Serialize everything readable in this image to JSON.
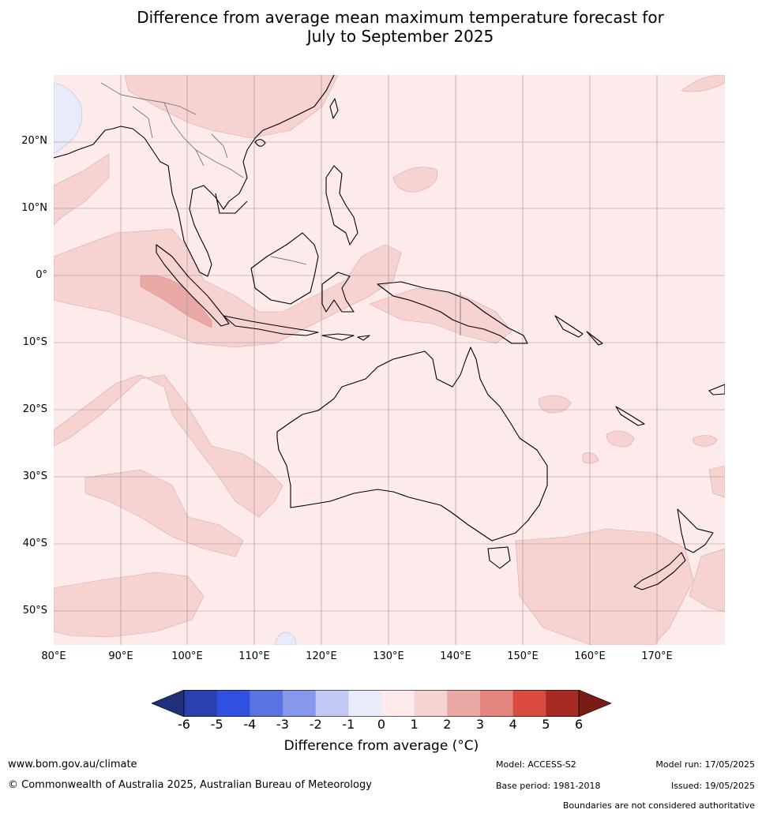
{
  "title_line1": "Difference from average mean maximum temperature forecast for",
  "title_line2": "July to September 2025",
  "lat_labels": [
    "20°N",
    "10°N",
    "0°",
    "10°S",
    "20°S",
    "30°S",
    "40°S",
    "50°S"
  ],
  "lon_labels": [
    "80°E",
    "90°E",
    "100°E",
    "110°E",
    "120°E",
    "130°E",
    "140°E",
    "150°E",
    "160°E",
    "170°E"
  ],
  "colorbar": {
    "ticks": [
      "-6",
      "-5",
      "-4",
      "-3",
      "-2",
      "-1",
      "0",
      "1",
      "2",
      "3",
      "4",
      "5",
      "6"
    ],
    "colors": [
      "#1f2f7a",
      "#2a3fb0",
      "#3050e0",
      "#5a73e2",
      "#8797ec",
      "#c1c8f3",
      "#e8ebfa",
      "#fcebea",
      "#f6d3d0",
      "#eba9a5",
      "#e5857f",
      "#d84b3e",
      "#a72b23",
      "#7a1c16"
    ],
    "title": "Difference from average (°C)"
  },
  "footer": {
    "website": "www.bom.gov.au/climate",
    "copyright": "© Commonwealth of Australia 2025, Australian Bureau of Meteorology",
    "model": "Model: ACCESS-S2",
    "base_period": "Base period: 1981-2018",
    "model_run": "Model run: 17/05/2025",
    "issued": "Issued: 19/05/2025",
    "disclaimer": "Boundaries are not considered authoritative"
  }
}
